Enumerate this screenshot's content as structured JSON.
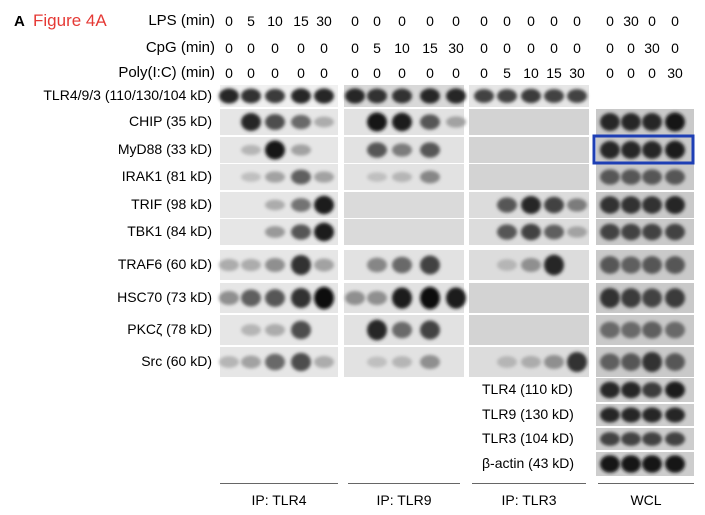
{
  "figure": {
    "panel_letter": "A",
    "title": "Figure 4A",
    "title_color": "#e53935",
    "highlight_color": "#1e3fb5"
  },
  "conditions": [
    {
      "label": "LPS (min)",
      "values": [
        "0",
        "5",
        "10",
        "15",
        "30",
        "0",
        "0",
        "0",
        "0",
        "0",
        "0",
        "0",
        "0",
        "0",
        "0",
        "0",
        "30",
        "0",
        "0"
      ]
    },
    {
      "label": "CpG (min)",
      "values": [
        "0",
        "0",
        "0",
        "0",
        "0",
        "0",
        "5",
        "10",
        "15",
        "30",
        "0",
        "0",
        "0",
        "0",
        "0",
        "0",
        "0",
        "30",
        "0"
      ]
    },
    {
      "label": "Poly(I:C) (min)",
      "values": [
        "0",
        "0",
        "0",
        "0",
        "0",
        "0",
        "0",
        "0",
        "0",
        "0",
        "0",
        "5",
        "10",
        "15",
        "30",
        "0",
        "0",
        "0",
        "30"
      ]
    }
  ],
  "blot_rows": [
    {
      "label": "TLR4/9/3 (110/130/104 kD)"
    },
    {
      "label": "CHIP (35 kD)"
    },
    {
      "label": "MyD88 (33 kD)"
    },
    {
      "label": "IRAK1 (81 kD)"
    },
    {
      "label": "TRIF (98 kD)"
    },
    {
      "label": "TBK1 (84 kD)"
    },
    {
      "label": "TRAF6 (60 kD)"
    },
    {
      "label": "HSC70 (73 kD)"
    },
    {
      "label": "PKCζ (78 kD)"
    },
    {
      "label": "Src (60 kD)"
    }
  ],
  "wcl_rows": [
    {
      "label": "TLR4 (110 kD)"
    },
    {
      "label": "TLR9 (130 kD)"
    },
    {
      "label": "TLR3 (104 kD)"
    },
    {
      "label": "β-actin (43 kD)"
    }
  ],
  "groups": [
    {
      "label": "IP: TLR4"
    },
    {
      "label": "IP: TLR9"
    },
    {
      "label": "IP: TLR3"
    },
    {
      "label": "WCL"
    }
  ],
  "band_intensity": {
    "scale": "0 = none, 1 = strongest",
    "ip_tlr4": {
      "TLR4/9/3": [
        0.85,
        0.8,
        0.75,
        0.85,
        0.85
      ],
      "CHIP": [
        0,
        0.85,
        0.65,
        0.5,
        0.15
      ],
      "MyD88": [
        0,
        0.1,
        0.95,
        0.2,
        0
      ],
      "IRAK1": [
        0,
        0.05,
        0.2,
        0.55,
        0.2
      ],
      "TRIF": [
        0,
        0,
        0.15,
        0.45,
        0.9
      ],
      "TBK1": [
        0,
        0,
        0.25,
        0.6,
        0.9
      ],
      "TRAF6": [
        0.15,
        0.15,
        0.3,
        0.8,
        0.2
      ],
      "HSC70": [
        0.3,
        0.55,
        0.6,
        0.8,
        1.0
      ],
      "PKCζ": [
        0,
        0.1,
        0.15,
        0.65,
        0
      ],
      "Src": [
        0.1,
        0.2,
        0.5,
        0.65,
        0.15
      ]
    },
    "ip_tlr9": {
      "TLR4/9/3": [
        0.85,
        0.8,
        0.8,
        0.85,
        0.85
      ],
      "CHIP": [
        0,
        0.95,
        0.9,
        0.6,
        0.2
      ],
      "MyD88": [
        0,
        0.6,
        0.4,
        0.6,
        0
      ],
      "IRAK1": [
        0,
        0.05,
        0.1,
        0.35,
        0
      ],
      "TRIF": [
        0,
        0,
        0,
        0,
        0
      ],
      "TBK1": [
        0,
        0,
        0,
        0,
        0
      ],
      "TRAF6": [
        0,
        0.35,
        0.5,
        0.7,
        0
      ],
      "HSC70": [
        0.3,
        0.3,
        0.9,
        1.0,
        0.9
      ],
      "PKCζ": [
        0,
        0.85,
        0.5,
        0.7,
        0
      ],
      "Src": [
        0,
        0.05,
        0.1,
        0.3,
        0
      ]
    },
    "ip_tlr3": {
      "TLR4/9/3": [
        0.7,
        0.7,
        0.75,
        0.7,
        0.7
      ],
      "CHIP": [
        0,
        0,
        0,
        0,
        0
      ],
      "MyD88": [
        0,
        0,
        0,
        0,
        0
      ],
      "IRAK1": [
        0,
        0,
        0,
        0,
        0
      ],
      "TRIF": [
        0,
        0.6,
        0.85,
        0.7,
        0.4
      ],
      "TBK1": [
        0,
        0.6,
        0.7,
        0.55,
        0.2
      ],
      "TRAF6": [
        0,
        0.1,
        0.3,
        0.85,
        0
      ],
      "HSC70": [
        0,
        0,
        0,
        0,
        0
      ],
      "PKCζ": [
        0,
        0,
        0,
        0,
        0
      ],
      "Src": [
        0,
        0.1,
        0.15,
        0.3,
        0.8
      ]
    },
    "wcl": {
      "CHIP": [
        0.85,
        0.85,
        0.85,
        0.95
      ],
      "MyD88": [
        0.85,
        0.85,
        0.85,
        0.9
      ],
      "IRAK1": [
        0.6,
        0.6,
        0.6,
        0.6
      ],
      "TRIF": [
        0.8,
        0.8,
        0.8,
        0.85
      ],
      "TBK1": [
        0.7,
        0.7,
        0.7,
        0.7
      ],
      "TRAF6": [
        0.6,
        0.55,
        0.6,
        0.6
      ],
      "HSC70": [
        0.8,
        0.75,
        0.7,
        0.75
      ],
      "PKCζ": [
        0.5,
        0.5,
        0.55,
        0.5
      ],
      "Src": [
        0.55,
        0.6,
        0.8,
        0.6
      ],
      "TLR4": [
        0.85,
        0.85,
        0.75,
        0.9
      ],
      "TLR9": [
        0.85,
        0.85,
        0.85,
        0.85
      ],
      "TLR3": [
        0.7,
        0.7,
        0.7,
        0.7
      ],
      "β-actin": [
        0.95,
        0.95,
        0.95,
        0.95
      ]
    }
  }
}
